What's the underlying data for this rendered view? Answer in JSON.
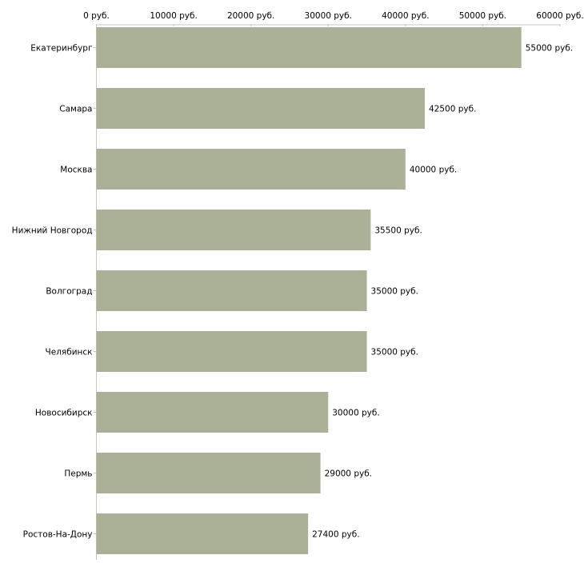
{
  "chart_data": {
    "type": "bar",
    "orientation": "horizontal",
    "title": "",
    "xlabel": "",
    "ylabel": "",
    "xlim": [
      0,
      60000
    ],
    "grid": false,
    "unit_suffix": " руб.",
    "x_ticks": [
      0,
      10000,
      20000,
      30000,
      40000,
      50000,
      60000
    ],
    "x_tick_labels": [
      "0 руб.",
      "10000 руб.",
      "20000 руб.",
      "30000 руб.",
      "40000 руб.",
      "50000 руб.",
      "60000 руб."
    ],
    "categories": [
      "Екатеринбург",
      "Самара",
      "Москва",
      "Нижний Новгород",
      "Волгоград",
      "Челябинск",
      "Новосибирск",
      "Пермь",
      "Ростов-На-Дону"
    ],
    "values": [
      55000,
      42500,
      40000,
      35500,
      35000,
      35000,
      30000,
      29000,
      27400
    ],
    "value_labels": [
      "55000 руб.",
      "42500 руб.",
      "40000 руб.",
      "35500 руб.",
      "35000 руб.",
      "35000 руб.",
      "30000 руб.",
      "29000 руб.",
      "27400 руб."
    ],
    "colors": {
      "bar": "#abb196",
      "axis": "#c8c8b8",
      "tick": "#c8cca8"
    }
  }
}
